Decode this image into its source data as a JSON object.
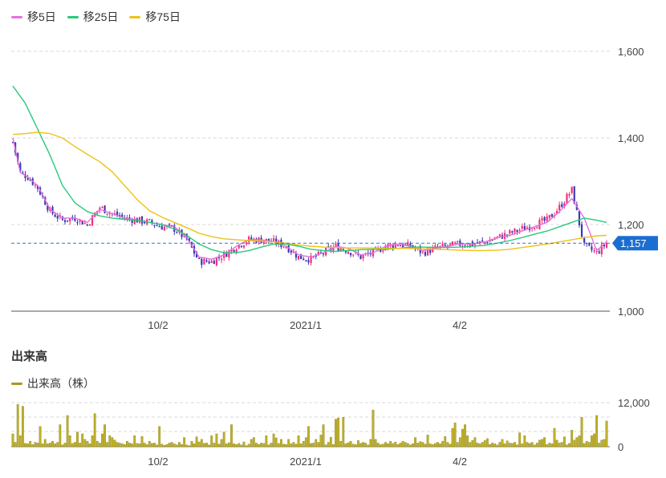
{
  "legend": [
    {
      "label": "移5日",
      "color": "#e56fe0"
    },
    {
      "label": "移25日",
      "color": "#29c97a"
    },
    {
      "label": "移75日",
      "color": "#ecc317"
    }
  ],
  "volume_section": {
    "title": "出来高",
    "legend_label": "出来高（株）",
    "legend_color": "#a99a1b"
  },
  "colors": {
    "up": "#f0307a",
    "down": "#3b3ab3",
    "grid": "#d9d9d9",
    "axis": "#777777",
    "current_price_line": "#3a73c4",
    "current_price_badge": "#1b6ed1",
    "volume_bar": "#bfb02a",
    "volume_bar_edge": "#8f8518"
  },
  "chart_data": [
    {
      "type": "candlestick",
      "title": "",
      "y_ticks": [
        "1,600",
        "1,400",
        "1,200",
        "1,000"
      ],
      "y_tick_values": [
        1600,
        1400,
        1200,
        1000
      ],
      "ylim": [
        1000,
        1650
      ],
      "x_tick_labels": [
        "10/2",
        "2021/1",
        "4/2"
      ],
      "grid": true,
      "legend_position": "top-left",
      "current_price": 1157,
      "current_price_label": "1,157",
      "series": [
        {
          "name": "移5日",
          "x": [
            0,
            3,
            6,
            10,
            15,
            20,
            25,
            30,
            35,
            40,
            45,
            50,
            55,
            60,
            65,
            70,
            75,
            80,
            85,
            90,
            95,
            100,
            105,
            110,
            115,
            120,
            125,
            130,
            135,
            140,
            145,
            150,
            155,
            160,
            165,
            170,
            175,
            180,
            185,
            190,
            195,
            200,
            205,
            210,
            215,
            220,
            225,
            230,
            235,
            239
          ],
          "values": [
            1400,
            1320,
            1310,
            1290,
            1235,
            1215,
            1215,
            1205,
            1235,
            1225,
            1215,
            1210,
            1205,
            1200,
            1195,
            1170,
            1125,
            1120,
            1130,
            1150,
            1165,
            1165,
            1160,
            1150,
            1130,
            1125,
            1135,
            1150,
            1145,
            1130,
            1135,
            1150,
            1155,
            1150,
            1140,
            1145,
            1150,
            1155,
            1155,
            1160,
            1170,
            1175,
            1185,
            1195,
            1205,
            1230,
            1260,
            1215,
            1140,
            1160
          ]
        },
        {
          "name": "移25日",
          "x": [
            0,
            5,
            10,
            15,
            20,
            25,
            30,
            35,
            40,
            45,
            50,
            55,
            60,
            65,
            70,
            75,
            80,
            85,
            90,
            95,
            100,
            105,
            110,
            115,
            120,
            125,
            130,
            135,
            140,
            145,
            150,
            155,
            160,
            165,
            170,
            175,
            180,
            185,
            190,
            195,
            200,
            205,
            210,
            215,
            220,
            225,
            230,
            235,
            239
          ],
          "values": [
            1520,
            1480,
            1420,
            1360,
            1290,
            1250,
            1230,
            1220,
            1215,
            1212,
            1210,
            1205,
            1200,
            1190,
            1175,
            1155,
            1142,
            1135,
            1135,
            1140,
            1148,
            1155,
            1155,
            1150,
            1143,
            1140,
            1138,
            1140,
            1142,
            1143,
            1143,
            1145,
            1148,
            1148,
            1147,
            1147,
            1148,
            1150,
            1152,
            1157,
            1163,
            1170,
            1178,
            1185,
            1195,
            1205,
            1215,
            1210,
            1205
          ]
        },
        {
          "name": "移75日",
          "x": [
            0,
            5,
            10,
            15,
            20,
            25,
            30,
            35,
            40,
            45,
            50,
            55,
            60,
            65,
            70,
            75,
            80,
            85,
            90,
            95,
            100,
            105,
            110,
            115,
            120,
            125,
            130,
            135,
            140,
            145,
            150,
            155,
            160,
            165,
            170,
            175,
            180,
            185,
            190,
            195,
            200,
            205,
            210,
            215,
            220,
            225,
            230,
            235,
            239
          ],
          "values": [
            1408,
            1410,
            1413,
            1410,
            1400,
            1380,
            1362,
            1345,
            1322,
            1290,
            1258,
            1232,
            1217,
            1205,
            1193,
            1180,
            1172,
            1167,
            1165,
            1163,
            1162,
            1160,
            1157,
            1153,
            1150,
            1148,
            1147,
            1146,
            1146,
            1146,
            1145,
            1145,
            1145,
            1144,
            1143,
            1142,
            1141,
            1140,
            1140,
            1141,
            1143,
            1147,
            1151,
            1155,
            1160,
            1165,
            1170,
            1174,
            1175
          ]
        }
      ],
      "price_path": {
        "x": [
          0,
          3,
          6,
          10,
          15,
          20,
          25,
          30,
          35,
          40,
          45,
          50,
          55,
          60,
          65,
          70,
          75,
          80,
          85,
          90,
          95,
          100,
          105,
          110,
          115,
          120,
          125,
          130,
          135,
          140,
          145,
          150,
          155,
          160,
          165,
          170,
          175,
          180,
          185,
          190,
          195,
          200,
          205,
          210,
          215,
          220,
          225,
          230,
          235,
          239
        ],
        "close": [
          1390,
          1320,
          1310,
          1285,
          1230,
          1210,
          1215,
          1200,
          1240,
          1225,
          1215,
          1210,
          1205,
          1195,
          1190,
          1165,
          1115,
          1115,
          1130,
          1150,
          1165,
          1165,
          1160,
          1150,
          1125,
          1120,
          1135,
          1150,
          1140,
          1125,
          1135,
          1150,
          1155,
          1150,
          1135,
          1145,
          1150,
          1155,
          1155,
          1160,
          1170,
          1180,
          1190,
          1200,
          1210,
          1240,
          1280,
          1150,
          1135,
          1157
        ]
      }
    },
    {
      "type": "bar",
      "title": "出来高",
      "series_name": "出来高（株）",
      "y_ticks": [
        "12,000",
        "0"
      ],
      "y_tick_values": [
        12000,
        0
      ],
      "ylim": [
        0,
        13000
      ],
      "x_tick_labels": [
        "10/2",
        "2021/1",
        "4/2"
      ],
      "legend_position": "top-left",
      "values": [
        3500,
        1200,
        11500,
        3000,
        11000,
        900,
        800,
        1500,
        600,
        1200,
        1000,
        5500,
        800,
        2000,
        800,
        1000,
        1500,
        800,
        1200,
        6000,
        500,
        1000,
        8500,
        3000,
        900,
        1200,
        4000,
        1000,
        3500,
        2000,
        1500,
        800,
        3000,
        9000,
        1500,
        1000,
        3500,
        6000,
        1200,
        3000,
        2500,
        1800,
        1200,
        1000,
        800,
        600,
        1500,
        1000,
        800,
        3000,
        900,
        800,
        2800,
        1000,
        600,
        1500,
        900,
        1000,
        500,
        5500,
        700,
        400,
        600,
        1000,
        1200,
        800,
        500,
        1200,
        600,
        2500,
        500,
        300,
        1500,
        800,
        2700,
        1300,
        2000,
        900,
        1000,
        500,
        3000,
        1000,
        3500,
        700,
        2000,
        4000,
        800,
        1100,
        6000,
        800,
        600,
        900,
        500,
        1300,
        300,
        700,
        2000,
        2500,
        1000,
        600,
        1000,
        900,
        3000,
        500,
        1000,
        3500,
        2400,
        900,
        2000,
        700,
        600,
        2000,
        800,
        1200,
        700,
        3000,
        800,
        1500,
        2500,
        5500,
        900,
        1000,
        2000,
        1200,
        3200,
        6000,
        500,
        1200,
        2600,
        600,
        7500,
        7800,
        1500,
        8000,
        800,
        1100,
        1500,
        700,
        600,
        1700,
        900,
        1200,
        1000,
        500,
        2000,
        10000,
        2000,
        1000,
        600,
        700,
        1200,
        800,
        1500,
        900,
        1300,
        600,
        1000,
        1500,
        1200,
        900,
        500,
        800,
        2500,
        1000,
        1400,
        1200,
        700,
        3200,
        800,
        600,
        900,
        1200,
        800,
        1500,
        2800,
        1200,
        700,
        5000,
        6500,
        1200,
        2500,
        4800,
        6000,
        3000,
        1200,
        1700,
        2500,
        1000,
        800,
        1200,
        1700,
        2200,
        600,
        1000,
        800,
        500,
        1200,
        2000,
        800,
        1600,
        1000,
        900,
        1200,
        500,
        3800,
        800,
        3000,
        1200,
        900,
        1200,
        500,
        1000,
        1800,
        2000,
        2500,
        600,
        1000,
        800,
        5000,
        1800,
        1000,
        1200,
        2700,
        500,
        900,
        4500,
        1800,
        2500,
        3000,
        8000,
        900,
        1500,
        1200,
        3000,
        3500,
        8500,
        1000,
        1800,
        2000,
        7000,
        7000,
        8000,
        4500,
        600,
        900,
        800,
        1200,
        1000
      ]
    }
  ]
}
